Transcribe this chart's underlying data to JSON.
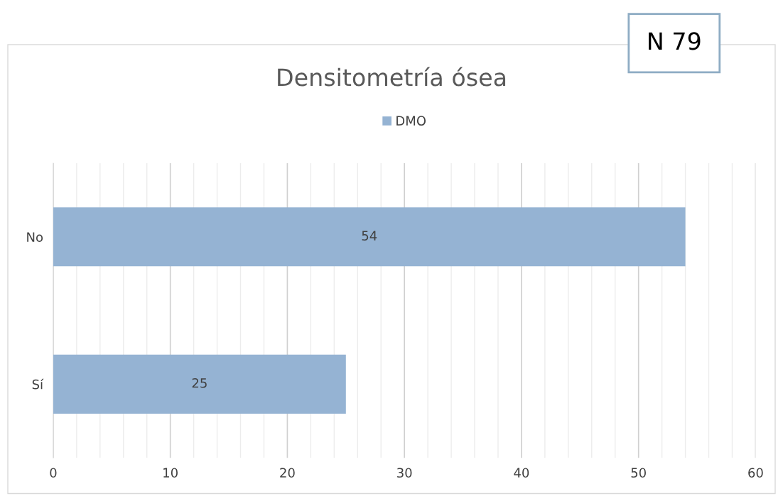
{
  "chart_data": {
    "type": "bar",
    "orientation": "horizontal",
    "title": "Densitometría ósea",
    "categories": [
      "No",
      "Sí"
    ],
    "series": [
      {
        "name": "DMO",
        "color": "#95b3d3",
        "values": [
          54,
          25
        ]
      }
    ],
    "xlim": [
      0,
      60
    ],
    "xticks": [
      0,
      {
        "value": 2,
        "label": null
      },
      {
        "value": 4,
        "label": null
      },
      {
        "value": 6,
        "label": null
      },
      {
        "value": 8,
        "label": null
      },
      10,
      {
        "value": 12,
        "label": null
      },
      {
        "value": 14,
        "label": null
      },
      {
        "value": 16,
        "label": null
      },
      {
        "value": 18,
        "label": null
      },
      20,
      {
        "value": 22,
        "label": null
      },
      {
        "value": 24,
        "label": null
      },
      {
        "value": 26,
        "label": null
      },
      {
        "value": 28,
        "label": null
      },
      30,
      {
        "value": 32,
        "label": null
      },
      {
        "value": 34,
        "label": null
      },
      {
        "value": 36,
        "label": null
      },
      {
        "value": 38,
        "label": null
      },
      40,
      {
        "value": 42,
        "label": null
      },
      {
        "value": 44,
        "label": null
      },
      {
        "value": 46,
        "label": null
      },
      {
        "value": 48,
        "label": null
      },
      50,
      {
        "value": 52,
        "label": null
      },
      {
        "value": 54,
        "label": null
      },
      {
        "value": 56,
        "label": null
      },
      {
        "value": 58,
        "label": null
      },
      60
    ],
    "grid": "x",
    "legend": "top",
    "data_labels": true,
    "annotations": [
      "N 79"
    ]
  }
}
